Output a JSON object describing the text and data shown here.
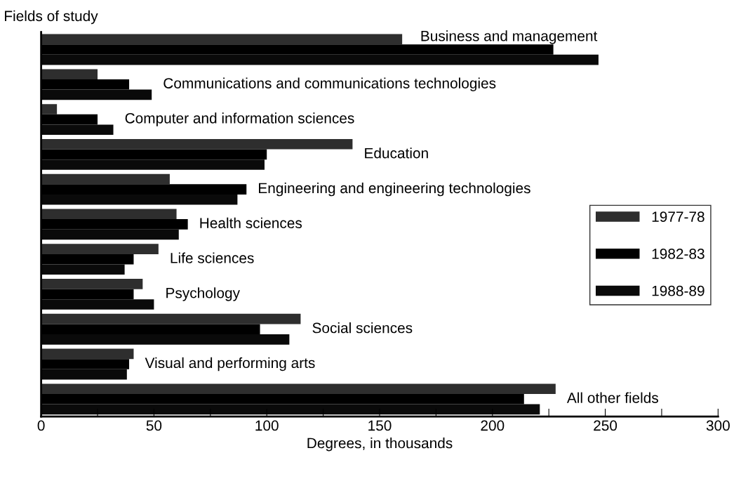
{
  "chart_data": {
    "type": "bar",
    "orientation": "horizontal",
    "xlabel": "Degrees, in thousands",
    "ylabel": "Fields of study",
    "categories": [
      "Business and management",
      "Communications and communications technologies",
      "Computer and information sciences",
      "Education",
      "Engineering and engineering technologies",
      "Health sciences",
      "Life sciences",
      "Psychology",
      "Social sciences",
      "Visual and performing arts",
      "All other fields"
    ],
    "series": [
      {
        "name": "1977-78",
        "color": "#2e2e2e",
        "values": [
          160,
          25,
          7,
          138,
          57,
          60,
          52,
          45,
          115,
          41,
          228
        ]
      },
      {
        "name": "1982-83",
        "color": "#000000",
        "values": [
          227,
          39,
          25,
          100,
          91,
          65,
          41,
          41,
          97,
          39,
          214
        ]
      },
      {
        "name": "1988-89",
        "color": "#0a0a0a",
        "values": [
          247,
          49,
          32,
          99,
          87,
          61,
          37,
          50,
          110,
          38,
          221
        ]
      }
    ],
    "xlim": [
      0,
      300
    ],
    "xticks": [
      0,
      {
        "value": 25,
        "label": null
      },
      50,
      {
        "value": 75,
        "label": null
      },
      100,
      {
        "value": 125,
        "label": null
      },
      150,
      {
        "value": 175,
        "label": null
      },
      200,
      {
        "value": 225,
        "label": null
      },
      250,
      {
        "value": 275,
        "label": null
      },
      300
    ],
    "tick_labels": "x",
    "grid": false,
    "legend": "right"
  }
}
